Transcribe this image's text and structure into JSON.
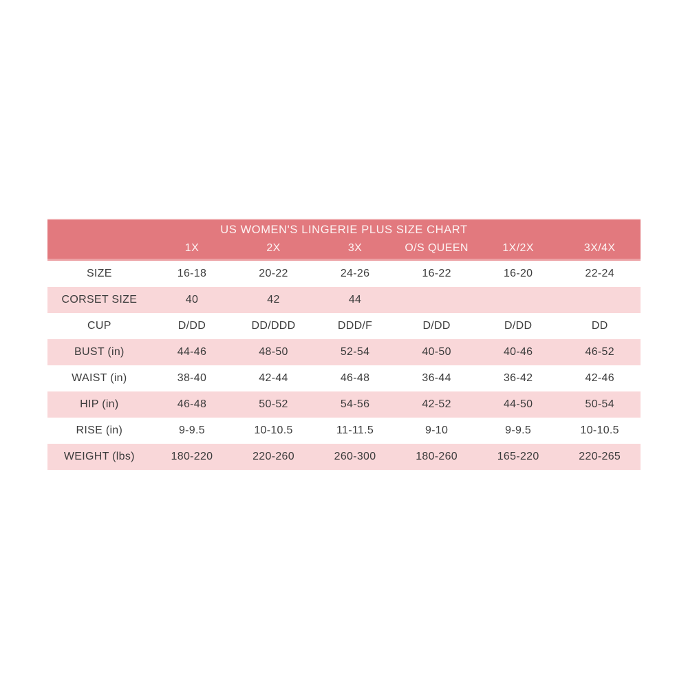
{
  "chart_data": {
    "type": "table",
    "title": "US WOMEN'S LINGERIE PLUS SIZE CHART",
    "columns": [
      "",
      "1X",
      "2X",
      "3X",
      "O/S QUEEN",
      "1X/2X",
      "3X/4X"
    ],
    "rows": [
      {
        "label": "SIZE",
        "values": [
          "16-18",
          "20-22",
          "24-26",
          "16-22",
          "16-20",
          "22-24"
        ]
      },
      {
        "label": "CORSET SIZE",
        "values": [
          "40",
          "42",
          "44",
          "",
          "",
          ""
        ]
      },
      {
        "label": "CUP",
        "values": [
          "D/DD",
          "DD/DDD",
          "DDD/F",
          "D/DD",
          "D/DD",
          "DD"
        ]
      },
      {
        "label": "BUST (in)",
        "values": [
          "44-46",
          "48-50",
          "52-54",
          "40-50",
          "40-46",
          "46-52"
        ]
      },
      {
        "label": "WAIST (in)",
        "values": [
          "38-40",
          "42-44",
          "46-48",
          "36-44",
          "36-42",
          "42-46"
        ]
      },
      {
        "label": "HIP (in)",
        "values": [
          "46-48",
          "50-52",
          "54-56",
          "42-52",
          "44-50",
          "50-54"
        ]
      },
      {
        "label": "RISE (in)",
        "values": [
          "9-9.5",
          "10-10.5",
          "11-11.5",
          "9-10",
          "9-9.5",
          "10-10.5"
        ]
      },
      {
        "label": "WEIGHT (lbs)",
        "values": [
          "180-220",
          "220-260",
          "260-300",
          "180-260",
          "165-220",
          "220-265"
        ]
      }
    ],
    "colors": {
      "header_bg": "#e2797e",
      "alt_row_bg": "#f9d7d9",
      "header_text": "#fdf3f3",
      "body_text": "#3c3c3c"
    },
    "layout": "header band with title and size-column labels; body rows alternate white / light-pink stripes starting with white"
  }
}
